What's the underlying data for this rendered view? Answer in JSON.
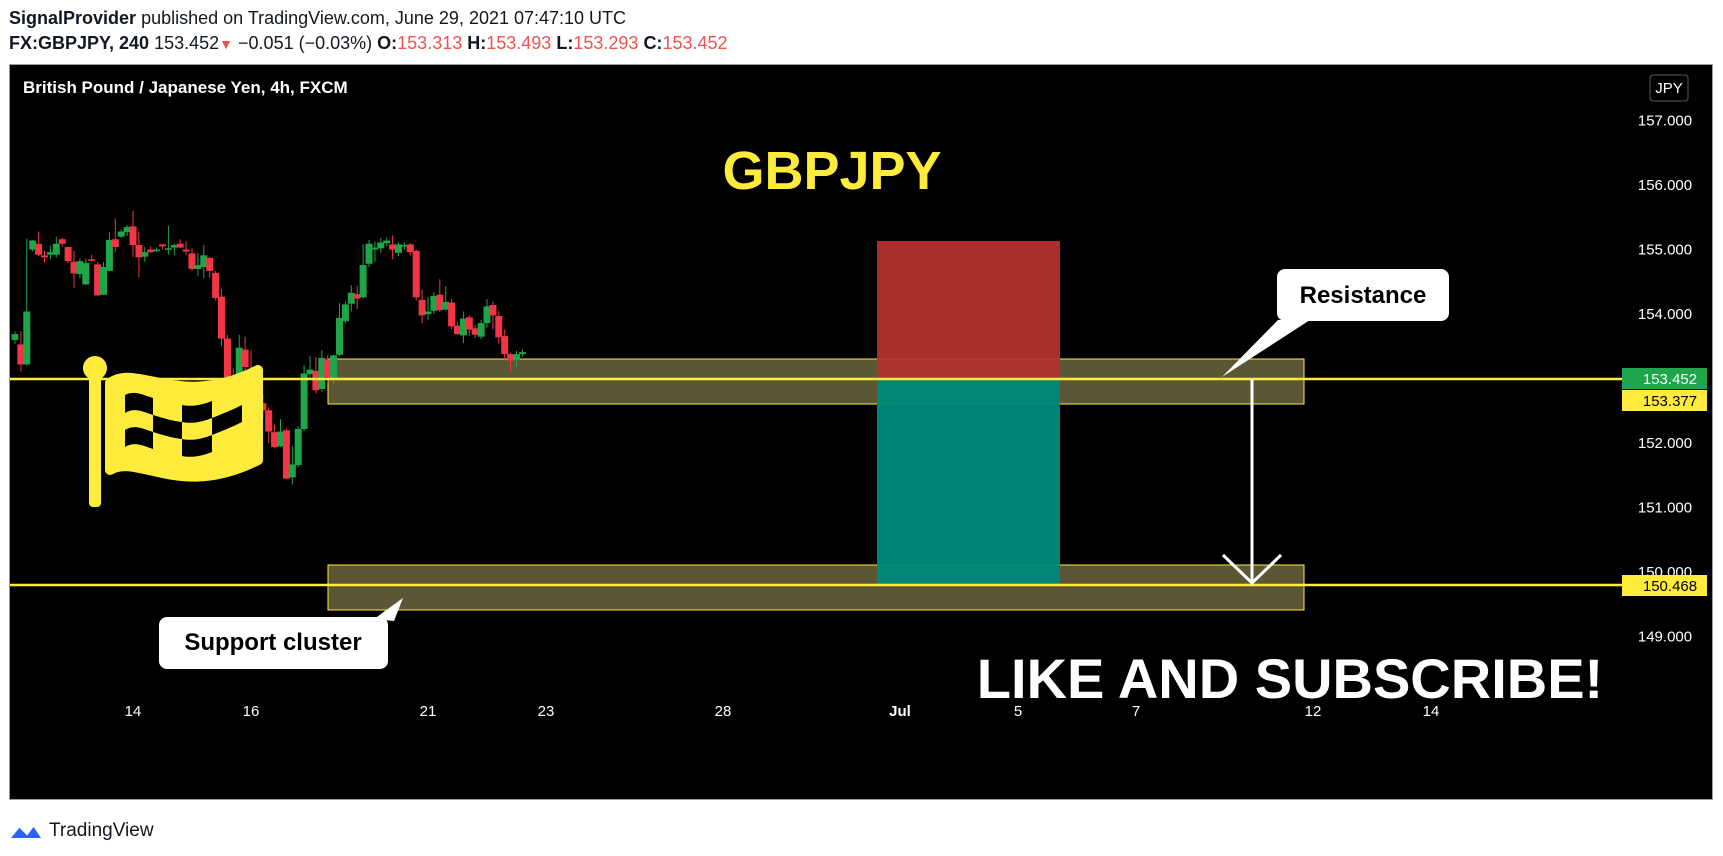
{
  "header": {
    "publisher": "SignalProvider",
    "published_text": "published on TradingView.com, June 29, 2021 07:47:10 UTC",
    "symbol": "FX:GBPJPY, 240",
    "last": "153.452",
    "down_arrow": "▼",
    "change": "−0.051 (−0.03%)",
    "o_label": "O:",
    "o_value": "153.313",
    "h_label": "H:",
    "h_value": "153.493",
    "l_label": "L:",
    "l_value": "153.293",
    "c_label": "C:",
    "c_value": "153.452"
  },
  "chart": {
    "instrument_title": "British Pound / Japanese Yen, 4h, FXCM",
    "currency_badge": "JPY",
    "big_title": "GBPJPY",
    "resistance_label": "Resistance",
    "support_label": "Support cluster",
    "cta": "LIKE AND SUBSCRIBE!",
    "flag_icon": "checkered-flag-icon",
    "colors": {
      "background": "#000000",
      "bull": "#26a69a",
      "bull_candle": "#1fa64a",
      "bear_candle": "#f23645",
      "zone_fill": "#6b6640",
      "zone_border": "#ffe94a",
      "level_line": "#ffeb3b",
      "stop_fill": "#b2322e",
      "target_fill": "#00897b",
      "accent_yellow": "#ffeb3b",
      "price_badge_green": "#1fa64a"
    }
  },
  "chart_data": {
    "type": "candlestick",
    "title": "British Pound / Japanese Yen, 4h, FXCM",
    "ylim": [
      148.7,
      157.4
    ],
    "y_ticks": [
      157,
      156,
      155,
      154,
      153,
      152,
      151,
      150,
      149
    ],
    "y_tick_labels": [
      "157.000",
      "156.000",
      "155.000",
      "154.000",
      "153.000",
      "152.000",
      "151.000",
      "150.000",
      "149.000"
    ],
    "x_tick_labels": [
      "14",
      "16",
      "21",
      "23",
      "28",
      "Jul",
      "5",
      "7",
      "12",
      "14"
    ],
    "x_tick_index": [
      20,
      40,
      70,
      90,
      120,
      150,
      170,
      190,
      220,
      240
    ],
    "candles": [
      [
        153.6,
        153.73,
        153.54,
        153.69
      ],
      [
        153.53,
        153.73,
        153.11,
        153.22
      ],
      [
        153.22,
        155.17,
        153.2,
        154.04
      ],
      [
        155.0,
        155.15,
        154.97,
        155.14
      ],
      [
        155.09,
        155.28,
        154.9,
        154.92
      ],
      [
        154.91,
        154.98,
        154.8,
        154.88
      ],
      [
        154.92,
        155.06,
        154.85,
        154.96
      ],
      [
        154.92,
        155.2,
        154.88,
        155.09
      ],
      [
        155.16,
        155.18,
        155.04,
        155.09
      ],
      [
        155.04,
        155.04,
        154.79,
        154.82
      ],
      [
        154.81,
        154.98,
        154.4,
        154.63
      ],
      [
        154.62,
        154.86,
        154.55,
        154.82
      ],
      [
        154.46,
        154.86,
        154.45,
        154.79
      ],
      [
        154.85,
        154.92,
        154.81,
        154.84
      ],
      [
        154.77,
        154.81,
        154.28,
        154.29
      ],
      [
        154.3,
        154.81,
        154.29,
        154.73
      ],
      [
        154.67,
        155.27,
        154.66,
        155.15
      ],
      [
        155.16,
        155.48,
        154.96,
        155.04
      ],
      [
        155.2,
        155.31,
        155.18,
        155.28
      ],
      [
        155.27,
        155.38,
        155.21,
        155.35
      ],
      [
        155.36,
        155.6,
        154.88,
        155.07
      ],
      [
        155.07,
        155.27,
        154.57,
        154.88
      ],
      [
        154.89,
        155.04,
        154.81,
        154.96
      ],
      [
        155.0,
        155.05,
        154.95,
        154.96
      ],
      [
        154.98,
        155.03,
        154.96,
        155.0
      ],
      [
        155.08,
        155.07,
        155.0,
        155.05
      ],
      [
        155.02,
        155.37,
        154.92,
        155.02
      ],
      [
        155.03,
        155.09,
        154.91,
        155.07
      ],
      [
        155.09,
        155.16,
        155.03,
        155.03
      ],
      [
        155.0,
        155.13,
        154.92,
        154.97
      ],
      [
        154.94,
        155.02,
        154.67,
        154.7
      ],
      [
        154.7,
        154.95,
        154.59,
        154.76
      ],
      [
        154.73,
        155.07,
        154.56,
        154.91
      ],
      [
        154.87,
        154.88,
        154.56,
        154.67
      ],
      [
        154.64,
        154.67,
        154.21,
        154.25
      ],
      [
        154.27,
        154.39,
        153.51,
        153.62
      ],
      [
        153.62,
        153.68,
        153.0,
        153.02
      ],
      [
        153.02,
        153.16,
        152.76,
        152.92
      ],
      [
        152.95,
        153.68,
        152.84,
        153.48
      ],
      [
        153.45,
        153.65,
        153.07,
        153.18
      ],
      [
        153.05,
        153.44,
        152.8,
        152.94
      ],
      [
        152.95,
        153.03,
        152.34,
        152.57
      ],
      [
        152.62,
        152.76,
        152.4,
        152.51
      ],
      [
        152.51,
        152.55,
        152.0,
        152.18
      ],
      [
        152.17,
        152.29,
        151.92,
        151.94
      ],
      [
        151.95,
        152.37,
        151.94,
        152.18
      ],
      [
        152.2,
        152.23,
        151.44,
        151.45
      ],
      [
        151.47,
        151.96,
        151.36,
        151.67
      ],
      [
        151.66,
        152.26,
        151.63,
        152.22
      ],
      [
        152.22,
        153.21,
        152.19,
        153.08
      ],
      [
        153.07,
        153.35,
        153.0,
        153.14
      ],
      [
        153.12,
        153.33,
        152.77,
        152.82
      ],
      [
        152.84,
        153.44,
        152.8,
        153.32
      ],
      [
        153.3,
        153.36,
        152.93,
        153.02
      ],
      [
        153.0,
        153.37,
        152.92,
        153.36
      ],
      [
        153.37,
        154.17,
        153.35,
        153.94
      ],
      [
        153.89,
        154.19,
        153.86,
        154.15
      ],
      [
        154.16,
        154.45,
        154.04,
        154.33
      ],
      [
        154.31,
        154.44,
        154.08,
        154.24
      ],
      [
        154.26,
        155.08,
        154.24,
        154.76
      ],
      [
        154.78,
        155.15,
        154.73,
        155.09
      ],
      [
        155.0,
        155.12,
        154.81,
        155.03
      ],
      [
        155.02,
        155.18,
        154.95,
        155.11
      ],
      [
        155.1,
        155.18,
        155.05,
        155.14
      ],
      [
        155.08,
        155.22,
        154.85,
        155.0
      ],
      [
        154.95,
        155.11,
        154.9,
        155.08
      ],
      [
        155.06,
        155.11,
        155.0,
        155.07
      ],
      [
        155.08,
        155.1,
        154.91,
        154.96
      ],
      [
        154.98,
        155.0,
        154.21,
        154.26
      ],
      [
        154.22,
        154.38,
        153.86,
        153.98
      ],
      [
        154.0,
        154.26,
        153.91,
        154.04
      ],
      [
        154.05,
        154.34,
        154.0,
        154.28
      ],
      [
        154.3,
        154.54,
        154.03,
        154.06
      ],
      [
        154.07,
        154.43,
        154.05,
        154.19
      ],
      [
        154.18,
        154.24,
        153.77,
        153.81
      ],
      [
        153.82,
        153.88,
        153.68,
        153.69
      ],
      [
        153.67,
        154.04,
        153.55,
        153.93
      ],
      [
        153.95,
        153.98,
        153.66,
        153.76
      ],
      [
        153.78,
        153.83,
        153.63,
        153.68
      ],
      [
        153.65,
        153.91,
        153.61,
        153.86
      ],
      [
        153.86,
        154.23,
        153.79,
        154.12
      ],
      [
        154.14,
        154.19,
        153.76,
        153.98
      ],
      [
        153.97,
        154.05,
        153.54,
        153.64
      ],
      [
        153.66,
        153.76,
        153.29,
        153.38
      ],
      [
        153.38,
        153.4,
        153.11,
        153.28
      ],
      [
        153.29,
        153.43,
        153.19,
        153.38
      ],
      [
        153.38,
        153.45,
        153.34,
        153.41
      ]
    ],
    "annotations": {
      "resistance_zone": [
        153.0,
        153.66
      ],
      "support_zone": [
        150.07,
        150.75
      ],
      "resistance_line": 153.377,
      "support_line": 150.468,
      "stop_box": [
        153.377,
        155.34
      ],
      "target_box": [
        150.468,
        153.377
      ],
      "arrow_from": 153.377,
      "arrow_to": 150.468
    },
    "price_labels": [
      {
        "value": "153.452",
        "kind": "current"
      },
      {
        "value": "153.377",
        "kind": "resistance"
      },
      {
        "value": "150.468",
        "kind": "support"
      }
    ]
  },
  "footer": {
    "brand": "TradingView",
    "logo_icon": "tradingview-logo-icon"
  }
}
